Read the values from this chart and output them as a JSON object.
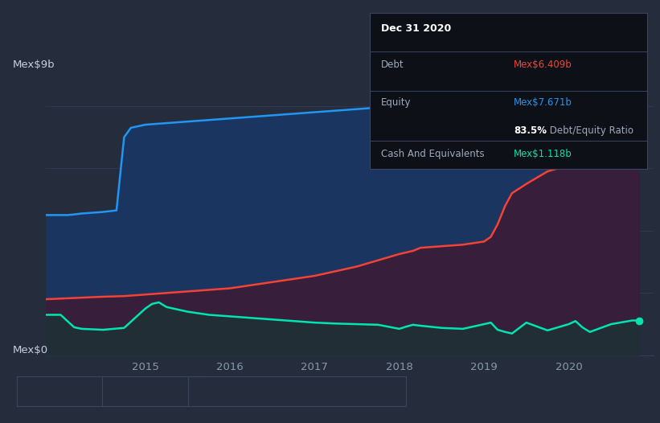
{
  "bg_color": "#252d3d",
  "plot_bg_color": "#252d3d",
  "title": "Dec 31 2020",
  "tooltip_debt_label": "Debt",
  "tooltip_equity_label": "Equity",
  "tooltip_cash_label": "Cash And Equivalents",
  "tooltip_debt": "Mex$6.409b",
  "tooltip_equity": "Mex$7.671b",
  "tooltip_ratio": "83.5%",
  "tooltip_ratio_text": " Debt/Equity Ratio",
  "tooltip_cash": "Mex$1.118b",
  "ylabel_top": "Mex$9b",
  "ylabel_bottom": "Mex$0",
  "equity_color": "#2196f3",
  "debt_color": "#f44336",
  "cash_color": "#00e5b0",
  "equity_fill": "#1a3560",
  "debt_fill": "#3d1a35",
  "cash_fill": "#1a3535",
  "grid_color": "#303d55",
  "tooltip_bg": "#0d1117",
  "tooltip_border": "#3a4560",
  "legend_border": "#3a4560",
  "equity_data_x": [
    2013.83,
    2014.0,
    2014.08,
    2014.16,
    2014.25,
    2014.5,
    2014.66,
    2014.75,
    2014.83,
    2015.0,
    2015.25,
    2015.5,
    2015.75,
    2016.0,
    2016.25,
    2016.5,
    2016.75,
    2017.0,
    2017.25,
    2017.5,
    2017.75,
    2018.0,
    2018.25,
    2018.5,
    2018.75,
    2019.0,
    2019.25,
    2019.5,
    2019.75,
    2020.0,
    2020.25,
    2020.5,
    2020.75,
    2020.83
  ],
  "equity_data_y": [
    4.5,
    4.5,
    4.5,
    4.52,
    4.55,
    4.6,
    4.65,
    7.0,
    7.3,
    7.4,
    7.45,
    7.5,
    7.55,
    7.6,
    7.65,
    7.7,
    7.75,
    7.8,
    7.85,
    7.9,
    7.95,
    8.0,
    8.1,
    8.2,
    8.25,
    8.3,
    8.35,
    8.35,
    8.3,
    8.15,
    8.0,
    7.9,
    7.671,
    7.671
  ],
  "debt_data_x": [
    2013.83,
    2014.0,
    2014.25,
    2014.5,
    2014.75,
    2015.0,
    2015.25,
    2015.5,
    2015.75,
    2016.0,
    2016.25,
    2016.5,
    2016.75,
    2017.0,
    2017.25,
    2017.5,
    2017.75,
    2018.0,
    2018.08,
    2018.16,
    2018.25,
    2018.5,
    2018.75,
    2019.0,
    2019.08,
    2019.16,
    2019.25,
    2019.33,
    2019.5,
    2019.75,
    2020.0,
    2020.25,
    2020.5,
    2020.75,
    2020.83
  ],
  "debt_data_y": [
    1.8,
    1.82,
    1.85,
    1.88,
    1.9,
    1.95,
    2.0,
    2.05,
    2.1,
    2.15,
    2.25,
    2.35,
    2.45,
    2.55,
    2.7,
    2.85,
    3.05,
    3.25,
    3.3,
    3.35,
    3.45,
    3.5,
    3.55,
    3.65,
    3.8,
    4.2,
    4.8,
    5.2,
    5.5,
    5.9,
    6.1,
    6.25,
    6.35,
    6.409,
    6.409
  ],
  "cash_data_x": [
    2013.83,
    2014.0,
    2014.08,
    2014.16,
    2014.25,
    2014.5,
    2014.75,
    2015.0,
    2015.08,
    2015.16,
    2015.25,
    2015.5,
    2015.75,
    2016.0,
    2016.25,
    2016.5,
    2016.75,
    2017.0,
    2017.25,
    2017.5,
    2017.75,
    2018.0,
    2018.08,
    2018.16,
    2018.25,
    2018.5,
    2018.75,
    2019.0,
    2019.08,
    2019.16,
    2019.25,
    2019.33,
    2019.5,
    2019.75,
    2020.0,
    2020.08,
    2020.16,
    2020.25,
    2020.5,
    2020.75,
    2020.83
  ],
  "cash_data_y": [
    1.3,
    1.3,
    1.1,
    0.9,
    0.85,
    0.82,
    0.88,
    1.5,
    1.65,
    1.7,
    1.55,
    1.4,
    1.3,
    1.25,
    1.2,
    1.15,
    1.1,
    1.05,
    1.02,
    1.0,
    0.98,
    0.85,
    0.92,
    0.98,
    0.95,
    0.88,
    0.85,
    1.0,
    1.05,
    0.82,
    0.75,
    0.7,
    1.05,
    0.8,
    1.0,
    1.1,
    0.9,
    0.75,
    1.0,
    1.118,
    1.118
  ],
  "ylim": [
    0,
    9.5
  ],
  "xlim_left": 2013.83,
  "xlim_right": 2021.0,
  "figsize": [
    8.21,
    5.26
  ],
  "dpi": 100
}
